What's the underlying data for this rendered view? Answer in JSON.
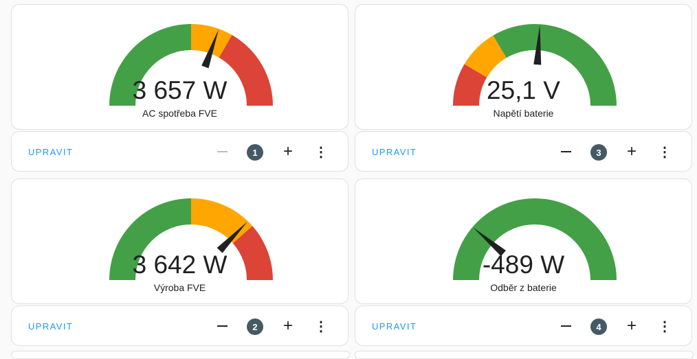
{
  "colors": {
    "green": "#43a047",
    "orange": "#ffa600",
    "red": "#db4437",
    "needle": "#212121",
    "accent": "#2196f3"
  },
  "cards": [
    {
      "name": "AC spotřeba FVE",
      "value": "3 657 W",
      "needle_fraction": 0.61,
      "segments": [
        {
          "from": 0,
          "to": 0.5,
          "color": "green"
        },
        {
          "from": 0.5,
          "to": 0.667,
          "color": "orange"
        },
        {
          "from": 0.667,
          "to": 1,
          "color": "red"
        }
      ],
      "edit_label": "UPRAVIT",
      "position": "1",
      "minus_disabled": true
    },
    {
      "name": "Napětí baterie",
      "value": "25,1 V",
      "needle_fraction": 0.52,
      "segments": [
        {
          "from": 0,
          "to": 0.17,
          "color": "red"
        },
        {
          "from": 0.17,
          "to": 0.33,
          "color": "orange"
        },
        {
          "from": 0.33,
          "to": 1,
          "color": "green"
        }
      ],
      "edit_label": "UPRAVIT",
      "position": "3",
      "minus_disabled": false
    },
    {
      "name": "Výroba FVE",
      "value": "3 642 W",
      "needle_fraction": 0.744,
      "segments": [
        {
          "from": 0,
          "to": 0.5,
          "color": "green"
        },
        {
          "from": 0.5,
          "to": 0.77,
          "color": "orange"
        },
        {
          "from": 0.77,
          "to": 1,
          "color": "red"
        }
      ],
      "edit_label": "UPRAVIT",
      "position": "2",
      "minus_disabled": false
    },
    {
      "name": "Odběr z baterie",
      "value": "-489 W",
      "needle_fraction": 0.225,
      "segments": [
        {
          "from": 0,
          "to": 1,
          "color": "green"
        }
      ],
      "edit_label": "UPRAVIT",
      "position": "4",
      "minus_disabled": false
    }
  ]
}
